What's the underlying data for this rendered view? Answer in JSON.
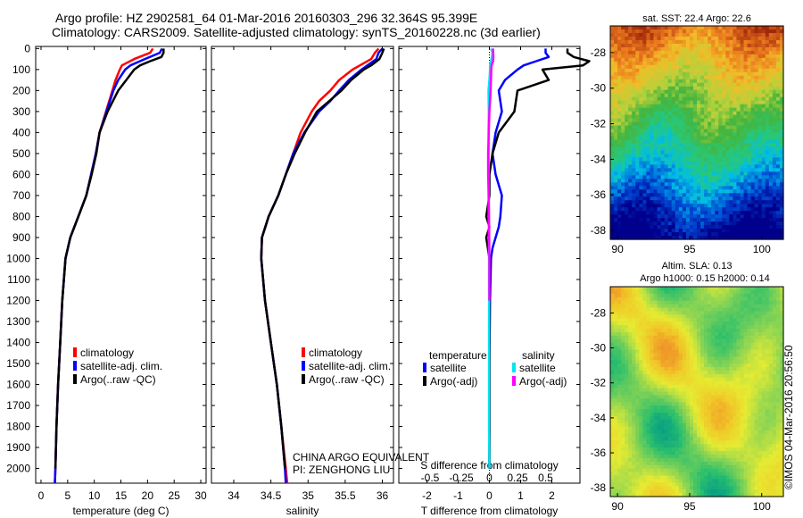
{
  "title": {
    "line1": "Argo profile: HZ 2902581_64 01-Mar-2016 20160303_296 32.364S 95.399E",
    "line2": "Climatology: CARS2009. Satellite-adjusted climatology: synTS_20160228.nc (3d earlier)"
  },
  "credit": {
    "line1": "CHINA ARGO EQUIVALENT",
    "line2": "PI: ZENGHONG LIU"
  },
  "timestamp": "©IMOS 04-Mar-2016 20:56:50",
  "colors": {
    "climatology": "#ff0000",
    "satellite": "#0000ff",
    "argo": "#000000",
    "argo_sal": "#ff00ff",
    "sat_sal": "#00e5ee"
  },
  "chart_data": [
    {
      "type": "line",
      "name": "temperature-profile",
      "xlabel": "temperature (deg C)",
      "xlim": [
        -1,
        31
      ],
      "xticks": [
        0,
        5,
        10,
        15,
        20,
        25,
        30
      ],
      "ylim": [
        2070,
        -10
      ],
      "yticks": [
        0,
        100,
        200,
        300,
        400,
        500,
        600,
        700,
        800,
        900,
        1000,
        1100,
        1200,
        1300,
        1400,
        1500,
        1600,
        1700,
        1800,
        1900,
        2000
      ],
      "legend": [
        "climatology",
        "satellite-adj. clim.",
        "Argo(..raw -QC)"
      ],
      "series": [
        {
          "name": "climatology",
          "color": "#ff0000",
          "depth": [
            0,
            20,
            50,
            80,
            100,
            150,
            200,
            300,
            400,
            500,
            600,
            700,
            800,
            900,
            1000,
            1200,
            1400,
            1600,
            1800,
            2000,
            2070
          ],
          "values": [
            21,
            20.5,
            17.5,
            15.2,
            14.8,
            14,
            13.4,
            12.2,
            11,
            10.3,
            9.4,
            8.5,
            7,
            5.5,
            4.6,
            4,
            3.6,
            3.2,
            2.9,
            2.7,
            2.6
          ]
        },
        {
          "name": "satellite-adj. clim.",
          "color": "#0000ff",
          "depth": [
            0,
            20,
            50,
            80,
            100,
            150,
            200,
            300,
            400,
            500,
            600,
            700,
            800,
            900,
            1000,
            1200,
            1400,
            1600,
            1800,
            2000,
            2070
          ],
          "values": [
            22.7,
            22.3,
            19.5,
            16.8,
            15.8,
            14.5,
            13.6,
            12.3,
            11,
            10.3,
            9.4,
            8.5,
            7,
            5.5,
            4.6,
            4,
            3.6,
            3.2,
            2.9,
            2.7,
            2.6
          ]
        },
        {
          "name": "Argo(..raw -QC)",
          "color": "#000000",
          "depth": [
            0,
            20,
            40,
            60,
            80,
            100,
            150,
            200,
            300,
            400,
            500,
            600,
            700,
            800,
            900,
            1000,
            1200,
            1400,
            1600,
            1800,
            2000
          ],
          "values": [
            23,
            23,
            22.6,
            20.5,
            18.6,
            17.5,
            16,
            14.5,
            12.5,
            11,
            10.4,
            9.5,
            8.5,
            7,
            5.5,
            4.6,
            4,
            3.6,
            3.2,
            2.9,
            2.7
          ]
        }
      ]
    },
    {
      "type": "line",
      "name": "salinity-profile",
      "xlabel": "salinity",
      "xlim": [
        33.7,
        36.15
      ],
      "xticks": [
        34,
        34.5,
        35,
        35.5,
        36
      ],
      "ylim": [
        2070,
        -10
      ],
      "legend": [
        "climatology",
        "satellite-adj. clim.",
        "Argo(..raw -QC)"
      ],
      "series": [
        {
          "name": "climatology",
          "color": "#ff0000",
          "depth": [
            0,
            20,
            50,
            80,
            100,
            150,
            200,
            250,
            300,
            400,
            500,
            600,
            700,
            800,
            900,
            1000,
            1200,
            1400,
            1600,
            1800,
            2000,
            2070
          ],
          "values": [
            35.95,
            35.9,
            35.85,
            35.7,
            35.6,
            35.42,
            35.3,
            35.15,
            35.05,
            34.9,
            34.8,
            34.7,
            34.6,
            34.47,
            34.38,
            34.37,
            34.42,
            34.5,
            34.58,
            34.64,
            34.7,
            34.72
          ]
        },
        {
          "name": "satellite-adj. clim.",
          "color": "#0000ff",
          "depth": [
            0,
            20,
            50,
            80,
            100,
            150,
            200,
            250,
            300,
            400,
            500,
            600,
            700,
            800,
            900,
            1000,
            1200,
            1400,
            1600,
            1800,
            2000,
            2070
          ],
          "values": [
            36,
            35.95,
            35.92,
            35.8,
            35.72,
            35.55,
            35.42,
            35.3,
            35.15,
            34.95,
            34.8,
            34.7,
            34.6,
            34.47,
            34.38,
            34.37,
            34.42,
            34.5,
            34.58,
            34.64,
            34.69,
            34.7
          ]
        },
        {
          "name": "Argo(..raw -QC)",
          "color": "#000000",
          "depth": [
            0,
            20,
            50,
            80,
            100,
            150,
            200,
            300,
            400,
            500,
            600,
            700,
            800,
            900,
            1000,
            1200,
            1400,
            1600,
            1800,
            2000
          ],
          "values": [
            36.02,
            36.0,
            35.96,
            35.85,
            35.75,
            35.58,
            35.45,
            35.12,
            34.96,
            34.82,
            34.7,
            34.6,
            34.47,
            34.38,
            34.37,
            34.42,
            34.5,
            34.58,
            34.64,
            34.69
          ]
        }
      ]
    },
    {
      "type": "line",
      "name": "difference-profile",
      "xlabel": "T difference from climatology",
      "xlabel2": "S difference from climatology",
      "xlim": [
        -2.9,
        2.9
      ],
      "xticks": [
        -2,
        -1,
        0,
        1,
        2
      ],
      "xticks_s": [
        "-0.5",
        "-0.25",
        "0",
        "0.25",
        "0.5"
      ],
      "ylim": [
        2070,
        -10
      ],
      "legend_headers": [
        "temperature",
        "salinity"
      ],
      "legend": [
        "satellite",
        "Argo(-adj)",
        "satellite",
        "Argo(-adj)"
      ],
      "series": [
        {
          "name": "T satellite",
          "color": "#0000ff",
          "depth": [
            0,
            20,
            40,
            60,
            80,
            100,
            150,
            200,
            300,
            400,
            500,
            600,
            700,
            800,
            850,
            900,
            950,
            1000,
            1200,
            1500,
            2000
          ],
          "values": [
            1.8,
            1.8,
            1.9,
            1.5,
            1.1,
            0.9,
            0.5,
            0.3,
            0.4,
            0.2,
            0.1,
            0.2,
            0.4,
            0.35,
            0.3,
            0.2,
            0.1,
            0.05,
            0.02,
            0,
            0
          ]
        },
        {
          "name": "T Argo(-adj)",
          "color": "#000000",
          "depth": [
            0,
            20,
            40,
            60,
            80,
            100,
            150,
            200,
            300,
            400,
            500,
            600,
            700,
            800,
            850,
            900,
            950,
            1000,
            1200,
            1500,
            2000
          ],
          "values": [
            2.5,
            2.5,
            2.7,
            3.2,
            3.0,
            1.7,
            1.9,
            0.9,
            0.8,
            0.3,
            0.1,
            0.0,
            0.0,
            -0.1,
            0.0,
            -0.1,
            -0.05,
            0,
            0,
            0,
            0
          ]
        },
        {
          "name": "S satellite",
          "color": "#00e5ee",
          "depth": [
            0,
            20,
            40,
            60,
            80,
            100,
            150,
            200,
            300,
            400,
            500,
            600,
            700,
            800,
            1000,
            1200,
            1500,
            1800,
            2000
          ],
          "values": [
            0.05,
            0.1,
            0.08,
            0.05,
            0.02,
            0.02,
            0.0,
            -0.03,
            -0.02,
            -0.03,
            -0.02,
            -0.03,
            -0.03,
            -0.02,
            -0.01,
            -0.01,
            -0.01,
            -0.01,
            0.0
          ]
        },
        {
          "name": "S Argo(-adj)",
          "color": "#ff00ff",
          "depth": [
            0,
            20,
            40,
            60,
            80,
            100,
            150,
            200,
            300,
            400,
            500,
            600,
            700,
            800,
            1000,
            1200
          ],
          "values": [
            0.12,
            0.12,
            0.13,
            0.12,
            0.07,
            0.06,
            0.05,
            0.04,
            0.0,
            -0.02,
            -0.04,
            -0.04,
            -0.02,
            -0.01,
            0.0,
            0.0
          ]
        }
      ]
    },
    {
      "type": "heatmap",
      "name": "sst-map",
      "title": "sat. SST: 22.4  Argo: 22.6",
      "xlim": [
        89.5,
        101.5
      ],
      "ylim": [
        -38.5,
        -26.5
      ],
      "xticks": [
        90,
        95,
        100
      ],
      "yticks": [
        -28,
        -30,
        -32,
        -34,
        -36,
        -38
      ]
    },
    {
      "type": "heatmap",
      "name": "sla-map",
      "title": "Altim. SLA: 0.13",
      "subtitle": "Argo h1000: 0.15 h2000: 0.14",
      "xlim": [
        89.5,
        101.5
      ],
      "ylim": [
        -38.5,
        -26.5
      ],
      "xticks": [
        90,
        95,
        100
      ],
      "yticks": [
        -28,
        -30,
        -32,
        -34,
        -36,
        -38
      ]
    }
  ]
}
